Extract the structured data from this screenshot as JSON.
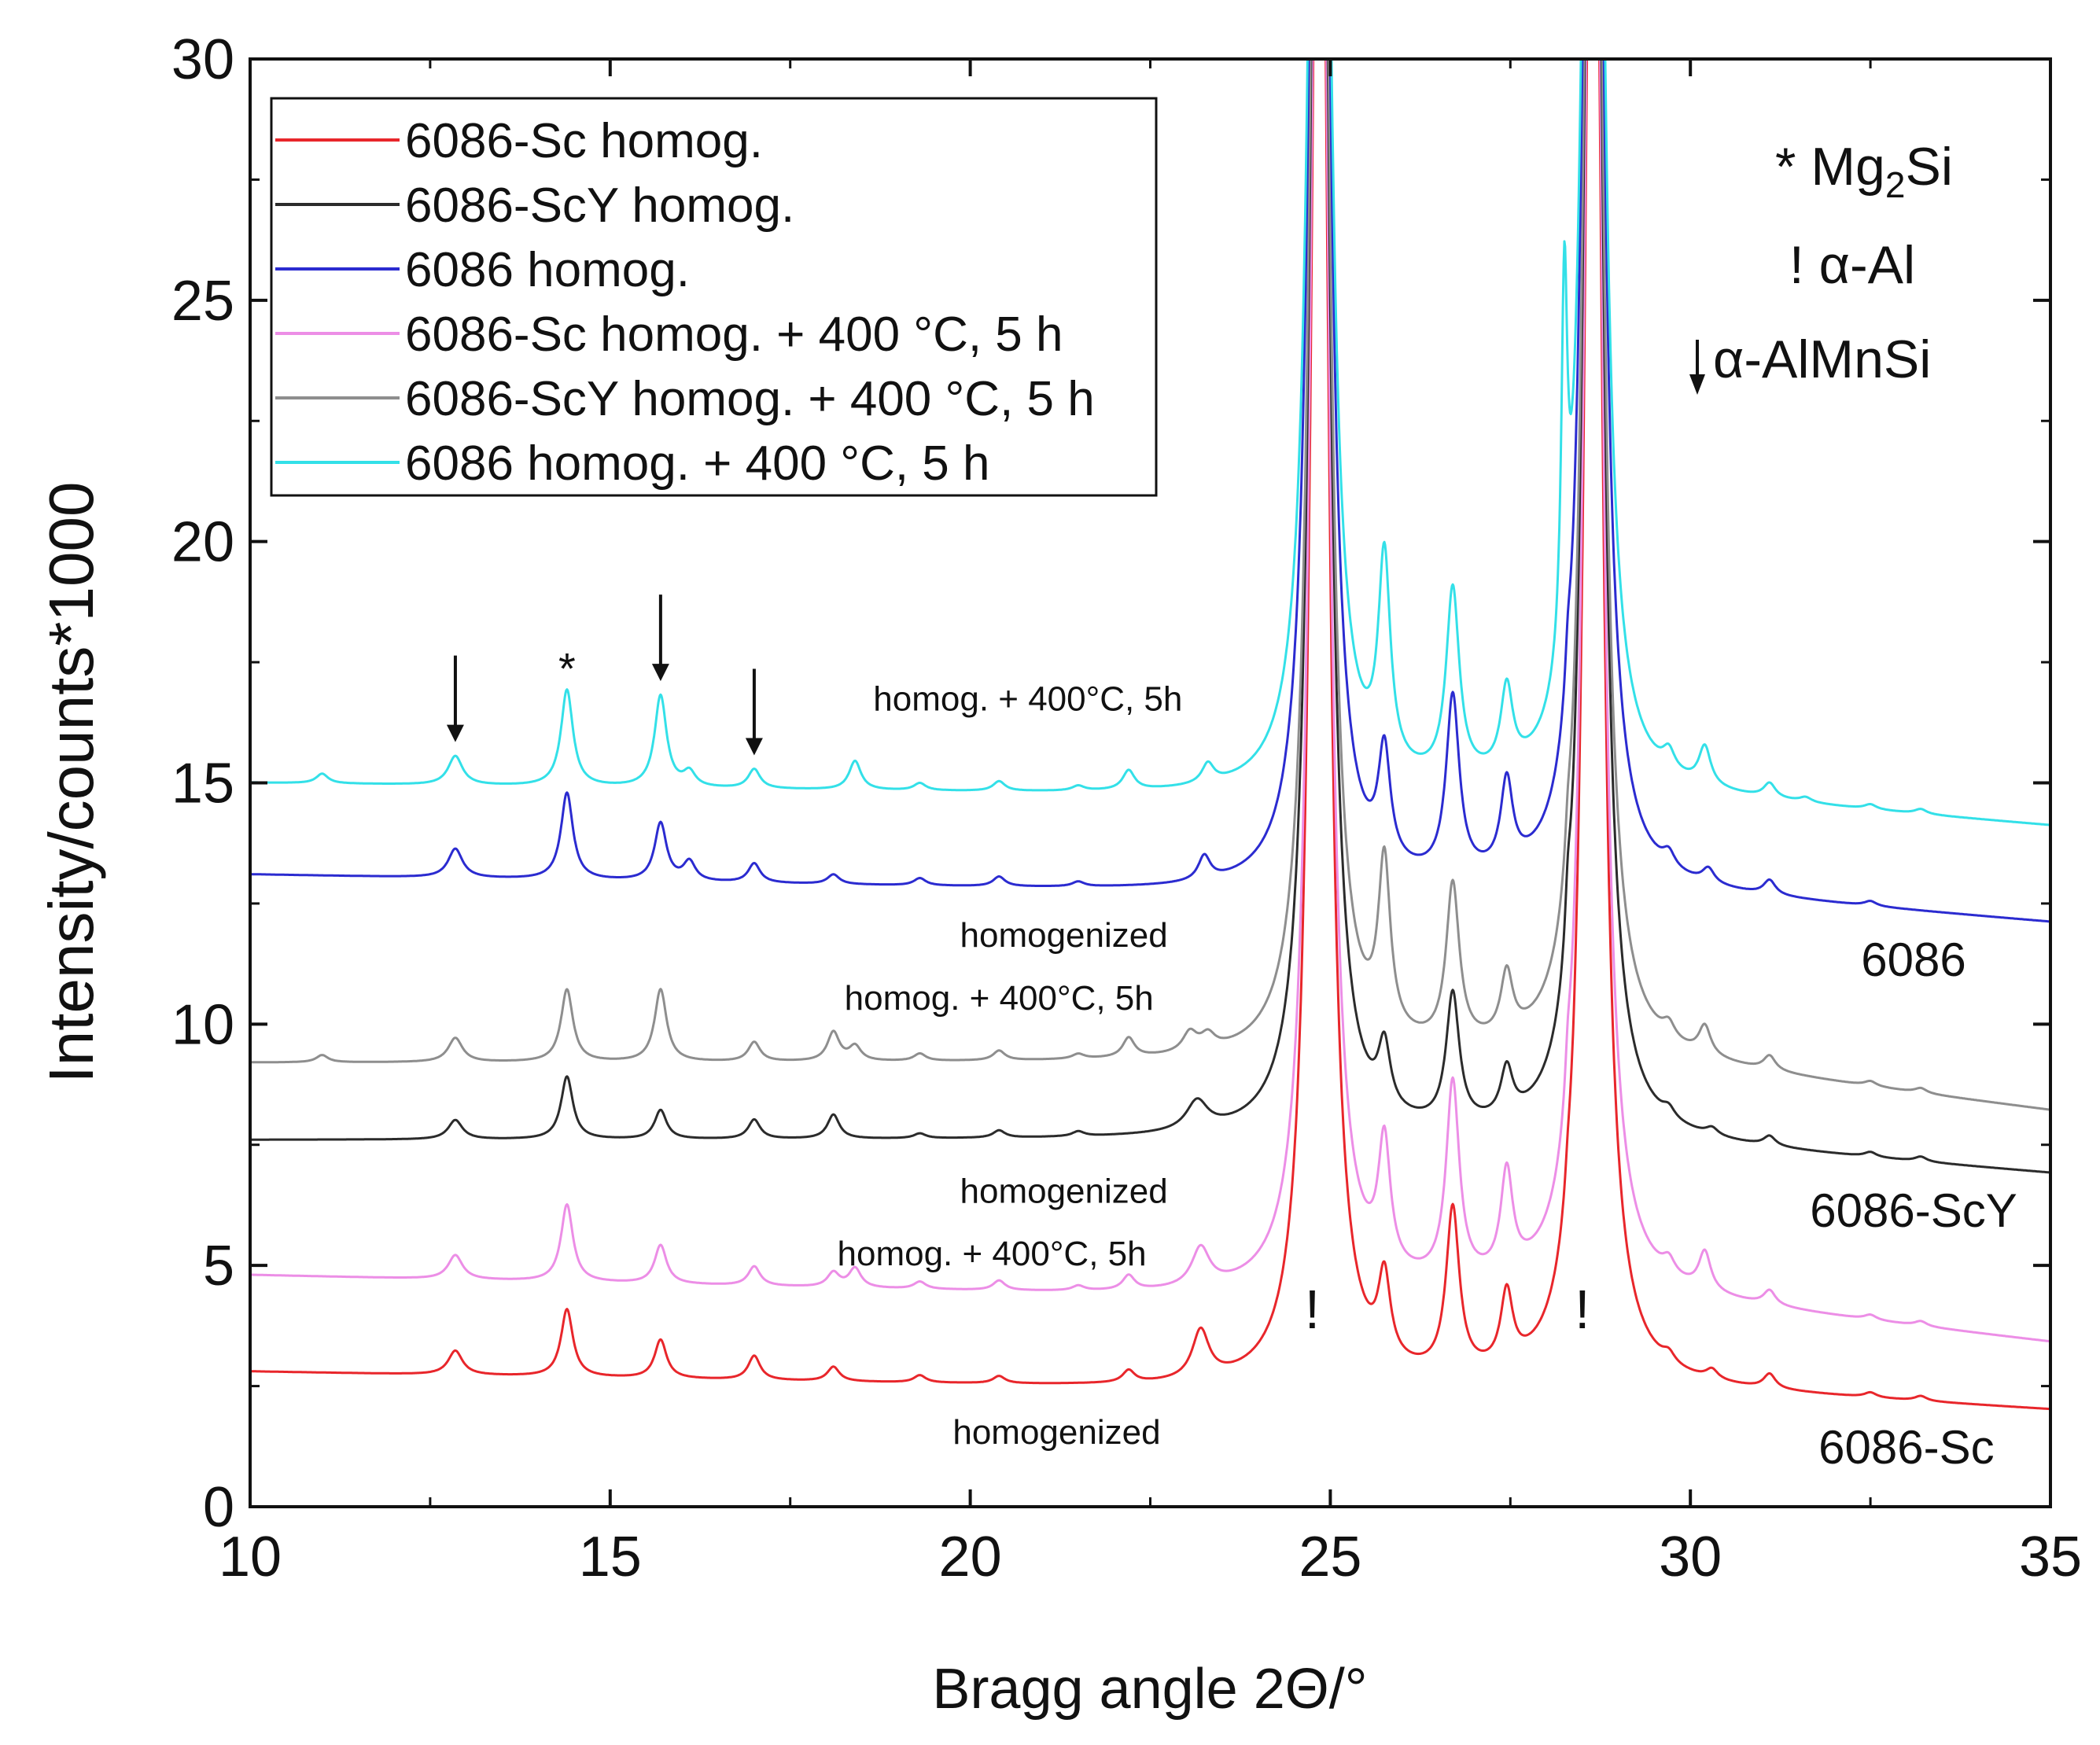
{
  "chart_data": {
    "type": "line",
    "title": "",
    "xlabel": "Bragg angle 2Θ/°",
    "ylabel": "Intensity/counts*1000",
    "xlim": [
      10,
      35
    ],
    "ylim": [
      0,
      30
    ],
    "x_ticks": [
      "10",
      "15",
      "20",
      "25",
      "30",
      "35"
    ],
    "y_ticks": [
      "0",
      "5",
      "10",
      "15",
      "20",
      "25",
      "30"
    ],
    "legend_position": "top-left",
    "series": [
      {
        "name": "6086-Sc homog.",
        "color": "#e8262b",
        "width": 3,
        "base": [
          [
            10,
            2.8
          ],
          [
            24.3,
            2.4
          ],
          [
            29.0,
            2.5
          ],
          [
            35,
            2.0
          ]
        ],
        "peaks": [
          [
            12.85,
            0.5,
            0.12
          ],
          [
            14.4,
            1.4,
            0.1
          ],
          [
            15.7,
            0.8,
            0.1
          ],
          [
            17.0,
            0.5,
            0.1
          ],
          [
            18.1,
            0.3,
            0.1
          ],
          [
            19.3,
            0.15,
            0.1
          ],
          [
            20.4,
            0.15,
            0.1
          ],
          [
            22.2,
            0.25,
            0.1
          ],
          [
            23.2,
            1.0,
            0.14
          ],
          [
            25.75,
            1.7,
            0.1
          ],
          [
            26.7,
            3.4,
            0.11
          ],
          [
            27.45,
            1.5,
            0.1
          ],
          [
            28.3,
            0.4,
            0.05
          ],
          [
            29.7,
            0.2,
            0.1
          ],
          [
            30.3,
            0.2,
            0.1
          ],
          [
            31.1,
            0.3,
            0.1
          ],
          [
            32.5,
            0.1,
            0.1
          ],
          [
            33.2,
            0.1,
            0.1
          ]
        ]
      },
      {
        "name": "6086-ScY homog.",
        "color": "#2b2b2b",
        "width": 3,
        "base": [
          [
            10,
            7.6
          ],
          [
            24.3,
            7.6
          ],
          [
            29.0,
            7.6
          ],
          [
            35,
            6.9
          ]
        ],
        "peaks": [
          [
            12.85,
            0.4,
            0.12
          ],
          [
            14.4,
            1.3,
            0.1
          ],
          [
            15.7,
            0.6,
            0.1
          ],
          [
            17.0,
            0.4,
            0.1
          ],
          [
            18.1,
            0.5,
            0.1
          ],
          [
            19.3,
            0.1,
            0.1
          ],
          [
            20.4,
            0.15,
            0.1
          ],
          [
            21.5,
            0.1,
            0.1
          ],
          [
            23.15,
            0.6,
            0.18
          ],
          [
            25.75,
            1.3,
            0.1
          ],
          [
            26.7,
            2.7,
            0.11
          ],
          [
            27.45,
            1.0,
            0.1
          ],
          [
            28.3,
            1.0,
            0.05
          ],
          [
            29.7,
            0.2,
            0.1
          ],
          [
            30.3,
            0.15,
            0.1
          ],
          [
            31.1,
            0.2,
            0.1
          ],
          [
            32.5,
            0.1,
            0.1
          ],
          [
            33.2,
            0.1,
            0.1
          ]
        ]
      },
      {
        "name": "6086 homog.",
        "color": "#2b2bd0",
        "width": 3,
        "base": [
          [
            10,
            13.1
          ],
          [
            24.3,
            12.7
          ],
          [
            29.0,
            12.8
          ],
          [
            35,
            12.1
          ]
        ],
        "peaks": [
          [
            12.85,
            0.6,
            0.12
          ],
          [
            14.4,
            1.8,
            0.1
          ],
          [
            15.7,
            1.2,
            0.1
          ],
          [
            16.1,
            0.4,
            0.1
          ],
          [
            17.0,
            0.4,
            0.1
          ],
          [
            18.1,
            0.2,
            0.1
          ],
          [
            19.3,
            0.15,
            0.1
          ],
          [
            20.4,
            0.2,
            0.1
          ],
          [
            21.5,
            0.1,
            0.1
          ],
          [
            23.25,
            0.5,
            0.1
          ],
          [
            25.75,
            2.3,
            0.1
          ],
          [
            26.7,
            3.7,
            0.11
          ],
          [
            27.45,
            1.8,
            0.1
          ],
          [
            28.3,
            0.8,
            0.05
          ],
          [
            29.7,
            0.3,
            0.1
          ],
          [
            30.25,
            0.3,
            0.1
          ],
          [
            31.1,
            0.3,
            0.1
          ],
          [
            32.5,
            0.1,
            0.1
          ]
        ]
      },
      {
        "name": "6086-Sc homog. + 400 °C, 5 h",
        "color": "#ec8ee6",
        "width": 3,
        "base": [
          [
            10,
            4.8
          ],
          [
            24.3,
            4.3
          ],
          [
            29.0,
            4.4
          ],
          [
            35,
            3.4
          ]
        ],
        "peaks": [
          [
            12.85,
            0.5,
            0.12
          ],
          [
            14.4,
            1.6,
            0.1
          ],
          [
            15.7,
            0.8,
            0.1
          ],
          [
            17.0,
            0.4,
            0.1
          ],
          [
            18.1,
            0.3,
            0.1
          ],
          [
            18.4,
            0.4,
            0.1
          ],
          [
            19.3,
            0.15,
            0.1
          ],
          [
            20.4,
            0.2,
            0.1
          ],
          [
            21.5,
            0.1,
            0.1
          ],
          [
            22.2,
            0.3,
            0.1
          ],
          [
            23.2,
            0.8,
            0.15
          ],
          [
            25.75,
            2.6,
            0.1
          ],
          [
            26.7,
            4.1,
            0.11
          ],
          [
            27.45,
            2.1,
            0.1
          ],
          [
            28.3,
            0.8,
            0.05
          ],
          [
            29.7,
            0.3,
            0.1
          ],
          [
            30.2,
            0.8,
            0.1
          ],
          [
            31.1,
            0.3,
            0.1
          ],
          [
            32.5,
            0.1,
            0.1
          ],
          [
            33.2,
            0.1,
            0.1
          ]
        ]
      },
      {
        "name": "6086-ScY homog. + 400 °C, 5 h",
        "color": "#8e8e8e",
        "width": 3,
        "base": [
          [
            10,
            9.2
          ],
          [
            24.3,
            9.2
          ],
          [
            29.0,
            9.3
          ],
          [
            35,
            8.2
          ]
        ],
        "peaks": [
          [
            11.0,
            0.15,
            0.1
          ],
          [
            12.85,
            0.5,
            0.12
          ],
          [
            14.4,
            1.5,
            0.1
          ],
          [
            15.7,
            1.5,
            0.1
          ],
          [
            17.0,
            0.4,
            0.1
          ],
          [
            18.1,
            0.6,
            0.1
          ],
          [
            18.4,
            0.3,
            0.1
          ],
          [
            19.3,
            0.15,
            0.1
          ],
          [
            20.4,
            0.2,
            0.1
          ],
          [
            21.5,
            0.1,
            0.1
          ],
          [
            22.2,
            0.4,
            0.1
          ],
          [
            23.05,
            0.4,
            0.12
          ],
          [
            23.3,
            0.3,
            0.12
          ],
          [
            25.75,
            3.5,
            0.1
          ],
          [
            26.7,
            3.3,
            0.11
          ],
          [
            27.45,
            1.3,
            0.1
          ],
          [
            28.3,
            0.7,
            0.05
          ],
          [
            29.7,
            0.3,
            0.1
          ],
          [
            30.2,
            0.6,
            0.1
          ],
          [
            31.1,
            0.3,
            0.1
          ],
          [
            32.5,
            0.1,
            0.1
          ],
          [
            33.2,
            0.1,
            0.1
          ]
        ]
      },
      {
        "name": "6086 homog. + 400 °C, 5 h",
        "color": "#33e0e8",
        "width": 3,
        "base": [
          [
            10,
            15.0
          ],
          [
            24.3,
            14.7
          ],
          [
            29.0,
            14.8
          ],
          [
            35,
            14.1
          ]
        ],
        "peaks": [
          [
            11.0,
            0.2,
            0.1
          ],
          [
            12.85,
            0.6,
            0.12
          ],
          [
            14.4,
            2.0,
            0.1
          ],
          [
            15.7,
            1.9,
            0.1
          ],
          [
            16.1,
            0.3,
            0.1
          ],
          [
            17.0,
            0.4,
            0.1
          ],
          [
            18.4,
            0.6,
            0.1
          ],
          [
            19.3,
            0.15,
            0.1
          ],
          [
            20.4,
            0.2,
            0.1
          ],
          [
            21.5,
            0.1,
            0.1
          ],
          [
            22.2,
            0.4,
            0.1
          ],
          [
            23.3,
            0.4,
            0.1
          ],
          [
            25.75,
            4.3,
            0.1
          ],
          [
            26.7,
            3.9,
            0.11
          ],
          [
            27.45,
            1.7,
            0.1
          ],
          [
            28.25,
            7.5,
            0.05
          ],
          [
            29.7,
            0.4,
            0.1
          ],
          [
            30.2,
            0.8,
            0.1
          ],
          [
            31.1,
            0.3,
            0.1
          ],
          [
            31.6,
            0.1,
            0.1
          ],
          [
            32.5,
            0.1,
            0.1
          ],
          [
            33.2,
            0.1,
            0.1
          ]
        ]
      }
    ],
    "alpha_al_peaks": [
      [
        24.85,
        0.13
      ],
      [
        28.65,
        0.13
      ]
    ],
    "legend_phases": {
      "mg2si_prefix": "* Mg",
      "mg2si_sub": "2",
      "mg2si_suffix": "Si",
      "alpha_al": "! α-Al",
      "alpha_almnsi": "α-AlMnSi"
    },
    "annotations": {
      "arrow_x": [
        12.85,
        15.7,
        17.0
      ],
      "star": {
        "label": "*",
        "x": 14.4
      },
      "exclamations": [
        {
          "label": "!",
          "x": 24.75,
          "y": 3.7
        },
        {
          "label": "!",
          "x": 28.5,
          "y": 3.7
        }
      ],
      "series_labels": [
        {
          "label": "homog. + 400°C, 5h",
          "x": 20.8,
          "y": 16.5
        },
        {
          "label": "homogenized",
          "x": 21.3,
          "y": 11.6
        },
        {
          "label": "6086",
          "x": 33.1,
          "y": 11.0
        },
        {
          "label": "homog. + 400°C, 5h",
          "x": 20.4,
          "y": 10.3
        },
        {
          "label": "homogenized",
          "x": 21.3,
          "y": 6.3
        },
        {
          "label": "6086-ScY",
          "x": 33.1,
          "y": 5.8
        },
        {
          "label": "homog. + 400°C, 5h",
          "x": 20.3,
          "y": 5.0
        },
        {
          "label": "homogenized",
          "x": 21.2,
          "y": 1.3
        },
        {
          "label": "6086-Sc",
          "x": 33.0,
          "y": 0.9
        }
      ]
    }
  }
}
